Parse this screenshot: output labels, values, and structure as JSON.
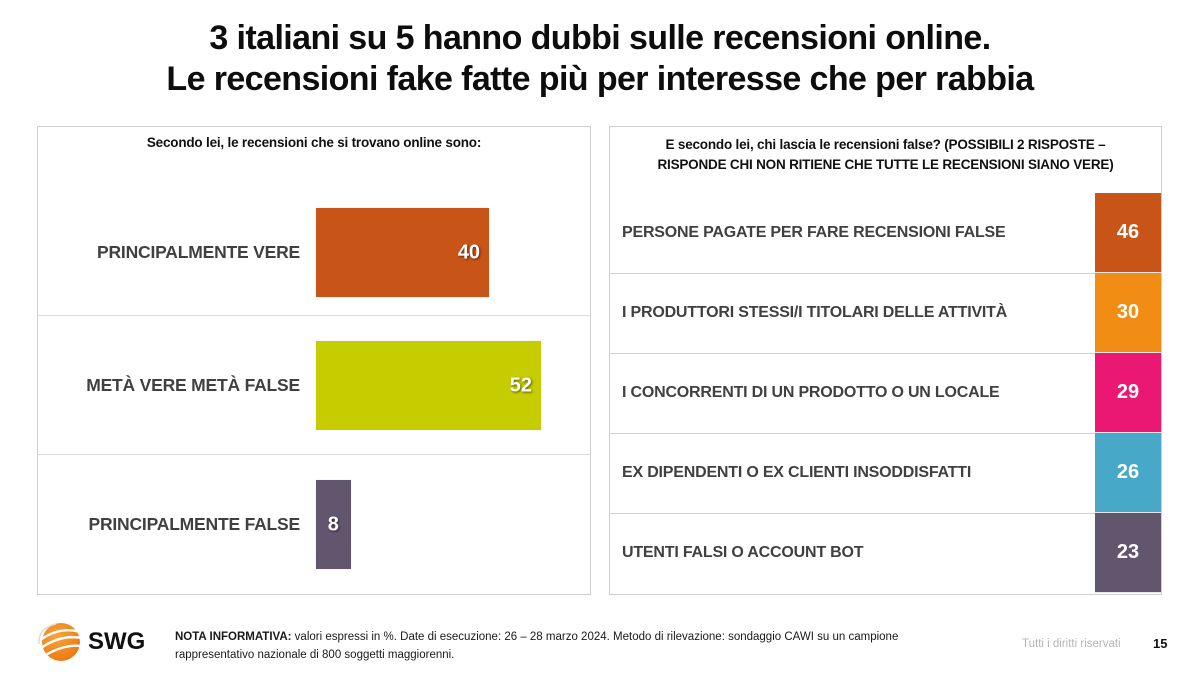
{
  "title": {
    "line1": "3 italiani su 5 hanno dubbi sulle recensioni online.",
    "line2": "Le recensioni fake fatte più per interesse che per rabbia"
  },
  "chart_data": [
    {
      "type": "bar",
      "orientation": "horizontal",
      "title": "Secondo lei, le recensioni che si trovano online sono:",
      "categories": [
        "PRINCIPALMENTE VERE",
        "METÀ VERE METÀ FALSE",
        "PRINCIPALMENTE FALSE"
      ],
      "values": [
        40,
        52,
        8
      ],
      "value_labels": [
        "40",
        "52",
        "8"
      ],
      "colors": [
        "#C85417",
        "#C5CC00",
        "#62566F"
      ],
      "unit": "%",
      "xlim": [
        0,
        55
      ],
      "grid": false,
      "legend": "none"
    },
    {
      "type": "table",
      "title": "E secondo lei, chi lascia le recensioni false? (POSSIBILI 2 RISPOSTE – RISPONDE CHI NON RITIENE CHE TUTTE LE RECENSIONI SIANO VERE)",
      "title_line1": "E secondo lei, chi lascia le recensioni false? (POSSIBILI 2 RISPOSTE –",
      "title_line2": "RISPONDE CHI NON RITIENE CHE TUTTE LE RECENSIONI SIANO VERE)",
      "categories": [
        "PERSONE PAGATE PER FARE RECENSIONI FALSE",
        "I PRODUTTORI STESSI/I TITOLARI DELLE ATTIVITÀ",
        "I CONCORRENTI DI UN PRODOTTO O UN LOCALE",
        "EX DIPENDENTI O EX CLIENTI INSODDISFATTI",
        "UTENTI FALSI O ACCOUNT BOT"
      ],
      "values": [
        46,
        30,
        29,
        26,
        23
      ],
      "value_labels": [
        "46",
        "30",
        "29",
        "26",
        "23"
      ],
      "colors": [
        "#C85417",
        "#F18D14",
        "#EA1873",
        "#48A8C8",
        "#62566F"
      ],
      "unit": "%"
    }
  ],
  "footer": {
    "logo_text": "SWG",
    "logo_icon": "globe-icon",
    "logo_color": "#F28A1E",
    "note_label": "NOTA INFORMATIVA:",
    "note_text": " valori espressi in %. Date di esecuzione: 26 – 28 marzo 2024. Metodo di rilevazione: sondaggio CAWI su un campione rappresentativo nazionale di 800 soggetti maggiorenni.",
    "rights": "Tutti i diritti riservati",
    "page_number": "15"
  }
}
